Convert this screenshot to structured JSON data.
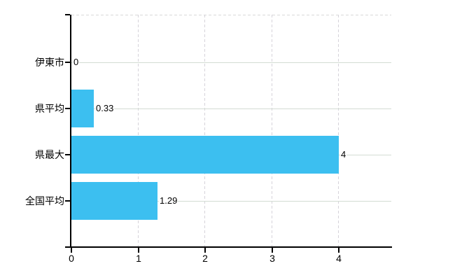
{
  "chart_data": {
    "type": "bar",
    "orientation": "horizontal",
    "title": "",
    "xlabel": "",
    "ylabel": "",
    "categories": [
      "伊東市",
      "県平均",
      "県最大",
      "全国平均"
    ],
    "values": [
      0,
      0.33,
      4,
      1.29
    ],
    "value_labels": [
      "0",
      "0.33",
      "4",
      "1.29"
    ],
    "x_ticks": [
      0,
      1,
      2,
      3,
      4
    ],
    "x_tick_labels": [
      "0",
      "1",
      "2",
      "3",
      "4"
    ],
    "xlim": [
      0,
      4.78
    ],
    "grid": true,
    "legend": false,
    "colors": {
      "bar": "#3CBFF0",
      "axis": "#000000",
      "text": "#000000",
      "gridline_horizontal": "#d3dcd3",
      "gridline_vertical": "#d6d3da",
      "plot_top_border": "#d9d9d9",
      "background": "#ffffff"
    }
  }
}
